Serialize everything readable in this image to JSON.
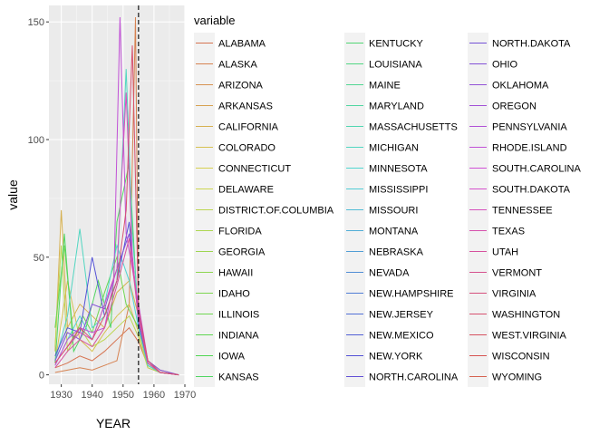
{
  "chart_data": {
    "type": "line",
    "xlabel": "YEAR",
    "ylabel": "value",
    "xlim": [
      1926,
      1970
    ],
    "ylim": [
      -4,
      157
    ],
    "x_ticks": [
      1930,
      1940,
      1950,
      1960,
      1970
    ],
    "y_ticks": [
      0,
      50,
      100,
      150
    ],
    "vline": {
      "x": 1955,
      "style": "dashed"
    },
    "legend": {
      "title": "variable",
      "placement": "right",
      "columns": [
        [
          "ALABAMA",
          "ALASKA",
          "ARIZONA",
          "ARKANSAS",
          "CALIFORNIA",
          "COLORADO",
          "CONNECTICUT",
          "DELAWARE",
          "DISTRICT.OF.COLUMBIA",
          "FLORIDA",
          "GEORGIA",
          "HAWAII",
          "IDAHO",
          "ILLINOIS",
          "INDIANA",
          "IOWA",
          "KANSAS"
        ],
        [
          "KENTUCKY",
          "LOUISIANA",
          "MAINE",
          "MARYLAND",
          "MASSACHUSETTS",
          "MICHIGAN",
          "MINNESOTA",
          "MISSISSIPPI",
          "MISSOURI",
          "MONTANA",
          "NEBRASKA",
          "NEVADA",
          "NEW.HAMPSHIRE",
          "NEW.JERSEY",
          "NEW.MEXICO",
          "NEW.YORK",
          "NORTH.CAROLINA"
        ],
        [
          "NORTH.DAKOTA",
          "OHIO",
          "OKLAHOMA",
          "OREGON",
          "PENNSYLVANIA",
          "RHODE.ISLAND",
          "SOUTH.CAROLINA",
          "SOUTH.DAKOTA",
          "TENNESSEE",
          "TEXAS",
          "UTAH",
          "VERMONT",
          "VIRGINIA",
          "WASHINGTON",
          "WEST.VIRGINIA",
          "WISCONSIN",
          "WYOMING"
        ]
      ]
    },
    "series": [
      {
        "name": "ALABAMA",
        "values": [
          [
            1928,
            3
          ],
          [
            1932,
            5
          ],
          [
            1936,
            8
          ],
          [
            1940,
            6
          ],
          [
            1944,
            10
          ],
          [
            1948,
            15
          ],
          [
            1952,
            20
          ],
          [
            1955,
            14
          ],
          [
            1958,
            4
          ],
          [
            1962,
            1
          ],
          [
            1968,
            0
          ]
        ]
      },
      {
        "name": "ALASKA",
        "values": [
          [
            1928,
            1
          ],
          [
            1932,
            2
          ],
          [
            1936,
            3
          ],
          [
            1940,
            2
          ],
          [
            1944,
            4
          ],
          [
            1948,
            6
          ],
          [
            1952,
            30
          ],
          [
            1954,
            152
          ],
          [
            1955,
            20
          ],
          [
            1958,
            3
          ],
          [
            1962,
            1
          ],
          [
            1968,
            0
          ]
        ]
      },
      {
        "name": "CALIFORNIA",
        "values": [
          [
            1928,
            10
          ],
          [
            1930,
            70
          ],
          [
            1932,
            20
          ],
          [
            1936,
            30
          ],
          [
            1940,
            25
          ],
          [
            1944,
            20
          ],
          [
            1948,
            35
          ],
          [
            1952,
            40
          ],
          [
            1955,
            25
          ],
          [
            1958,
            6
          ],
          [
            1962,
            2
          ],
          [
            1968,
            0
          ]
        ]
      },
      {
        "name": "COLORADO",
        "values": [
          [
            1928,
            5
          ],
          [
            1932,
            40
          ],
          [
            1936,
            15
          ],
          [
            1940,
            10
          ],
          [
            1944,
            18
          ],
          [
            1948,
            25
          ],
          [
            1952,
            30
          ],
          [
            1955,
            18
          ],
          [
            1958,
            4
          ],
          [
            1962,
            1
          ],
          [
            1968,
            0
          ]
        ]
      },
      {
        "name": "DISTRICT.OF.COLUMBIA",
        "values": [
          [
            1928,
            12
          ],
          [
            1930,
            55
          ],
          [
            1932,
            10
          ],
          [
            1936,
            20
          ],
          [
            1940,
            12
          ],
          [
            1944,
            15
          ],
          [
            1948,
            20
          ],
          [
            1952,
            25
          ],
          [
            1955,
            16
          ],
          [
            1958,
            3
          ],
          [
            1962,
            1
          ],
          [
            1968,
            0
          ]
        ]
      },
      {
        "name": "ILLINOIS",
        "values": [
          [
            1928,
            20
          ],
          [
            1931,
            55
          ],
          [
            1934,
            15
          ],
          [
            1937,
            25
          ],
          [
            1940,
            18
          ],
          [
            1944,
            35
          ],
          [
            1948,
            50
          ],
          [
            1951,
            30
          ],
          [
            1955,
            20
          ],
          [
            1958,
            5
          ],
          [
            1962,
            1
          ],
          [
            1968,
            0
          ]
        ]
      },
      {
        "name": "KANSAS",
        "values": [
          [
            1928,
            5
          ],
          [
            1931,
            60
          ],
          [
            1934,
            10
          ],
          [
            1938,
            20
          ],
          [
            1942,
            40
          ],
          [
            1946,
            20
          ],
          [
            1948,
            65
          ],
          [
            1952,
            90
          ],
          [
            1955,
            20
          ],
          [
            1958,
            4
          ],
          [
            1962,
            1
          ],
          [
            1968,
            0
          ]
        ]
      },
      {
        "name": "MICHIGAN",
        "values": [
          [
            1928,
            6
          ],
          [
            1932,
            25
          ],
          [
            1936,
            62
          ],
          [
            1940,
            20
          ],
          [
            1944,
            25
          ],
          [
            1948,
            40
          ],
          [
            1951,
            130
          ],
          [
            1953,
            60
          ],
          [
            1955,
            25
          ],
          [
            1958,
            5
          ],
          [
            1962,
            1
          ],
          [
            1968,
            0
          ]
        ]
      },
      {
        "name": "MINNESOTA",
        "values": [
          [
            1928,
            4
          ],
          [
            1932,
            15
          ],
          [
            1936,
            25
          ],
          [
            1940,
            15
          ],
          [
            1944,
            30
          ],
          [
            1948,
            55
          ],
          [
            1952,
            40
          ],
          [
            1955,
            20
          ],
          [
            1958,
            4
          ],
          [
            1962,
            1
          ],
          [
            1968,
            0
          ]
        ]
      },
      {
        "name": "NEW.YORK",
        "values": [
          [
            1928,
            8
          ],
          [
            1932,
            20
          ],
          [
            1936,
            18
          ],
          [
            1940,
            50
          ],
          [
            1944,
            25
          ],
          [
            1948,
            40
          ],
          [
            1952,
            65
          ],
          [
            1955,
            22
          ],
          [
            1958,
            5
          ],
          [
            1962,
            1
          ],
          [
            1968,
            0
          ]
        ]
      },
      {
        "name": "OHIO",
        "values": [
          [
            1928,
            6
          ],
          [
            1932,
            18
          ],
          [
            1936,
            15
          ],
          [
            1940,
            30
          ],
          [
            1944,
            28
          ],
          [
            1948,
            45
          ],
          [
            1952,
            60
          ],
          [
            1955,
            26
          ],
          [
            1958,
            6
          ],
          [
            1962,
            2
          ],
          [
            1968,
            0
          ]
        ]
      },
      {
        "name": "RHODE.ISLAND",
        "values": [
          [
            1928,
            4
          ],
          [
            1932,
            15
          ],
          [
            1936,
            20
          ],
          [
            1940,
            18
          ],
          [
            1944,
            20
          ],
          [
            1947,
            40
          ],
          [
            1949,
            152
          ],
          [
            1951,
            60
          ],
          [
            1955,
            30
          ],
          [
            1958,
            6
          ],
          [
            1962,
            1
          ],
          [
            1968,
            0
          ]
        ]
      },
      {
        "name": "TENNESSEE",
        "values": [
          [
            1928,
            5
          ],
          [
            1932,
            12
          ],
          [
            1936,
            18
          ],
          [
            1940,
            15
          ],
          [
            1944,
            30
          ],
          [
            1948,
            45
          ],
          [
            1951,
            120
          ],
          [
            1953,
            50
          ],
          [
            1955,
            25
          ],
          [
            1958,
            5
          ],
          [
            1962,
            1
          ],
          [
            1968,
            0
          ]
        ]
      },
      {
        "name": "UTAH",
        "values": [
          [
            1928,
            3
          ],
          [
            1932,
            10
          ],
          [
            1936,
            15
          ],
          [
            1940,
            12
          ],
          [
            1944,
            20
          ],
          [
            1948,
            38
          ],
          [
            1952,
            58
          ],
          [
            1955,
            24
          ],
          [
            1958,
            5
          ],
          [
            1962,
            1
          ],
          [
            1968,
            0
          ]
        ]
      },
      {
        "name": "WASHINGTON",
        "values": [
          [
            1928,
            5
          ],
          [
            1932,
            12
          ],
          [
            1936,
            20
          ],
          [
            1940,
            15
          ],
          [
            1944,
            25
          ],
          [
            1948,
            40
          ],
          [
            1951,
            70
          ],
          [
            1953,
            140
          ],
          [
            1955,
            28
          ],
          [
            1958,
            6
          ],
          [
            1962,
            1
          ],
          [
            1968,
            0
          ]
        ]
      }
    ]
  }
}
